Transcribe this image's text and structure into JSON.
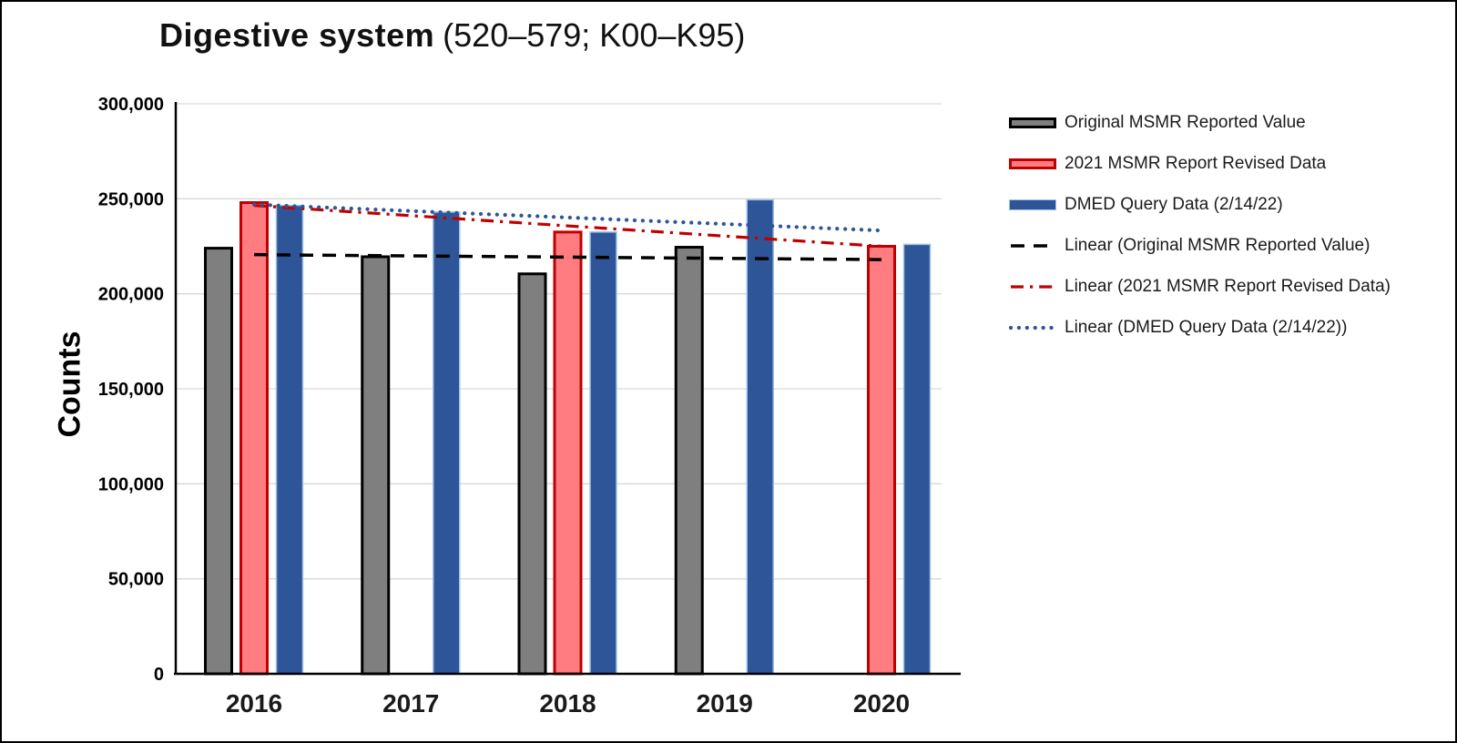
{
  "title": {
    "main": "Digestive system",
    "code": "(520–579; K00–K95)"
  },
  "chart_data": {
    "type": "bar",
    "title": "Digestive system (520–579; K00–K95)",
    "ylabel": "Counts",
    "xlabel": "",
    "ylim": [
      0,
      300000
    ],
    "ytick_step": 50000,
    "ytick_labels": [
      "0",
      "50,000",
      "100,000",
      "150,000",
      "200,000",
      "250,000",
      "300,000"
    ],
    "categories": [
      "2016",
      "2017",
      "2018",
      "2019",
      "2020"
    ],
    "series": [
      {
        "name": "Original MSMR Reported Value",
        "fill": "#7F7F7F",
        "border": "#000000",
        "border_width": 3,
        "values": [
          224000,
          219500,
          210500,
          224500,
          null
        ]
      },
      {
        "name": "2021 MSMR Report Revised Data",
        "fill": "#FF7C80",
        "border": "#C00000",
        "border_width": 3,
        "values": [
          248000,
          null,
          232500,
          null,
          225000
        ]
      },
      {
        "name": "DMED Query Data (2/14/22)",
        "fill": "#2E5597",
        "border": "#9DC3E6",
        "border_width": 1.5,
        "values": [
          246500,
          243000,
          232500,
          249500,
          226000
        ]
      }
    ],
    "trendlines": [
      {
        "name": "Linear (Original MSMR Reported Value)",
        "color": "#000000",
        "style": "dash",
        "start_value": 220600,
        "end_value": 218000
      },
      {
        "name": "Linear (2021 MSMR Report Revised Data)",
        "color": "#C00000",
        "style": "dashdot",
        "start_value": 246500,
        "end_value": 225000
      },
      {
        "name": "Linear (DMED Query Data (2/14/22))",
        "color": "#2E5597",
        "style": "dot",
        "start_value": 247000,
        "end_value": 233300
      }
    ],
    "legend_position": "right",
    "grid": true,
    "grid_color": "#D9D9D9",
    "axis_color": "#000000"
  }
}
